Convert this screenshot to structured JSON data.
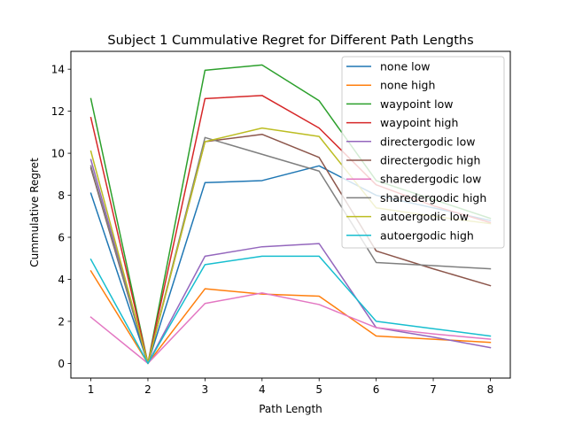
{
  "chart_data": {
    "type": "line",
    "title": "Subject 1 Cummulative Regret for Different Path Lengths",
    "xlabel": "Path Length",
    "ylabel": "Cummulative Regret",
    "x": [
      1,
      2,
      3,
      4,
      5,
      6,
      7,
      8
    ],
    "xlim": [
      0.65,
      8.35
    ],
    "ylim": [
      -0.7,
      14.85
    ],
    "xticks": [
      "1",
      "2",
      "3",
      "4",
      "5",
      "6",
      "7",
      "8"
    ],
    "yticks": [
      "0",
      "2",
      "4",
      "6",
      "8",
      "10",
      "12",
      "14"
    ],
    "grid": false,
    "legend_position": "top-right",
    "series": [
      {
        "name": "none low",
        "color": "#1f77b4",
        "values": [
          8.1,
          0.0,
          8.6,
          8.7,
          9.4,
          8.0,
          7.4,
          6.8
        ]
      },
      {
        "name": "none high",
        "color": "#ff7f0e",
        "values": [
          4.4,
          0.0,
          3.55,
          3.3,
          3.2,
          1.3,
          1.15,
          1.0
        ]
      },
      {
        "name": "waypoint low",
        "color": "#2ca02c",
        "values": [
          12.6,
          0.0,
          13.95,
          14.2,
          12.5,
          8.7,
          7.8,
          6.9
        ]
      },
      {
        "name": "waypoint high",
        "color": "#d62728",
        "values": [
          11.7,
          0.0,
          12.6,
          12.75,
          11.2,
          8.5,
          7.5,
          6.7
        ]
      },
      {
        "name": "directergodic low",
        "color": "#9467bd",
        "values": [
          9.7,
          0.0,
          5.1,
          5.55,
          5.7,
          1.7,
          1.25,
          0.75
        ]
      },
      {
        "name": "directergodic high",
        "color": "#8c564b",
        "values": [
          9.3,
          0.0,
          10.55,
          10.9,
          9.8,
          5.35,
          4.5,
          3.7
        ]
      },
      {
        "name": "sharedergodic low",
        "color": "#e377c2",
        "values": [
          2.2,
          0.0,
          2.85,
          3.35,
          2.8,
          1.7,
          1.4,
          1.15
        ]
      },
      {
        "name": "sharedergodic high",
        "color": "#7f7f7f",
        "values": [
          9.4,
          0.0,
          10.75,
          9.95,
          9.15,
          4.8,
          4.65,
          4.5
        ]
      },
      {
        "name": "autoergodic low",
        "color": "#bcbd22",
        "values": [
          10.1,
          0.0,
          10.55,
          11.2,
          10.8,
          7.4,
          7.0,
          6.65
        ]
      },
      {
        "name": "autoergodic high",
        "color": "#17becf",
        "values": [
          4.95,
          0.0,
          4.7,
          5.1,
          5.1,
          2.0,
          1.65,
          1.3
        ]
      }
    ]
  }
}
